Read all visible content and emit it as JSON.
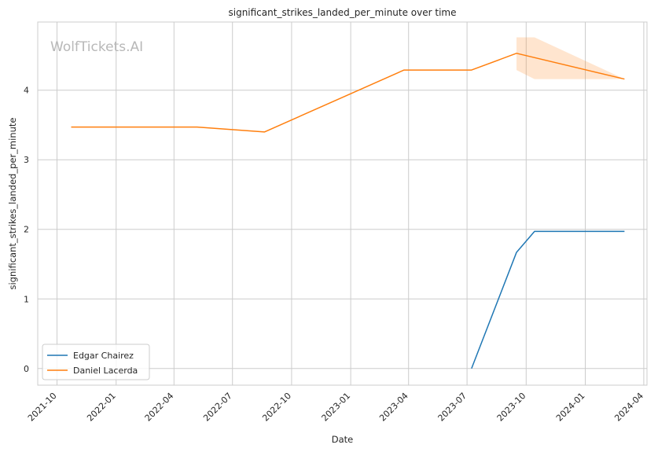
{
  "chart_data": {
    "type": "line",
    "title": "significant_strikes_landed_per_minute over time",
    "xlabel": "Date",
    "ylabel": "significant_strikes_landed_per_minute",
    "watermark": "WolfTickets.AI",
    "x_ticks": [
      "2021-10",
      "2022-01",
      "2022-04",
      "2022-07",
      "2022-10",
      "2023-01",
      "2023-04",
      "2023-07",
      "2023-10",
      "2024-01",
      "2024-04"
    ],
    "y_ticks": [
      0,
      1,
      2,
      3,
      4
    ],
    "xlim": [
      "2021-09-01",
      "2024-04-06"
    ],
    "ylim": [
      -0.24,
      4.98
    ],
    "grid": true,
    "legend_position": "lower-left",
    "series": [
      {
        "name": "Edgar Chairez",
        "color": "#1f77b4",
        "points": [
          {
            "x": "2023-07-08",
            "y": 0.0
          },
          {
            "x": "2023-09-16",
            "y": 1.67
          },
          {
            "x": "2023-10-14",
            "y": 1.97
          },
          {
            "x": "2024-03-02",
            "y": 1.97
          }
        ]
      },
      {
        "name": "Daniel Lacerda",
        "color": "#ff7f0e",
        "points": [
          {
            "x": "2021-10-23",
            "y": 3.47
          },
          {
            "x": "2022-05-07",
            "y": 3.47
          },
          {
            "x": "2022-08-20",
            "y": 3.4
          },
          {
            "x": "2023-03-25",
            "y": 4.29
          },
          {
            "x": "2023-07-08",
            "y": 4.29
          },
          {
            "x": "2023-09-16",
            "y": 4.53
          },
          {
            "x": "2024-03-02",
            "y": 4.16
          }
        ],
        "band": [
          {
            "x": "2023-09-16",
            "low": 4.29,
            "high": 4.76
          },
          {
            "x": "2023-10-14",
            "low": 4.16,
            "high": 4.76
          },
          {
            "x": "2024-03-02",
            "low": 4.16,
            "high": 4.16
          }
        ]
      }
    ]
  }
}
